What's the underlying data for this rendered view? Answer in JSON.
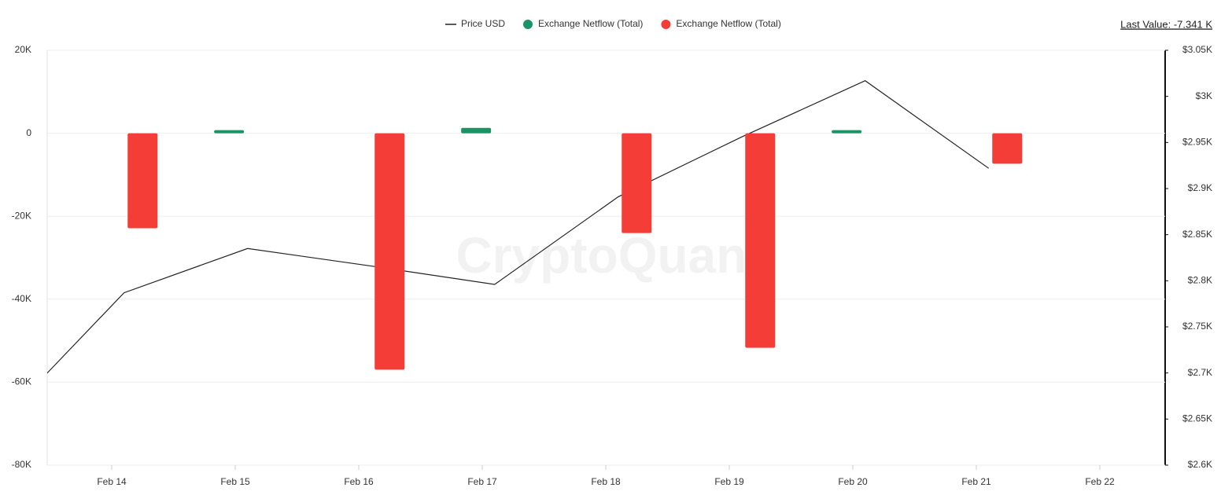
{
  "chart_data": {
    "type": "combo",
    "watermark": "CryptoQuant",
    "last_value": "Last Value: -7.341 K",
    "categories": [
      null,
      "Feb 14",
      "Feb 15",
      "Feb 16",
      "Feb 17",
      "Feb 18",
      "Feb 19",
      "Feb 20",
      "Feb 21",
      "Feb 22"
    ],
    "series": [
      {
        "name": "Price USD",
        "type": "line",
        "axis": "y2",
        "color": "#222222",
        "values": [
          2647,
          2787,
          2835,
          2816,
          2796,
          2891,
          2956,
          3017,
          2922,
          null
        ]
      },
      {
        "name": "Exchange Netflow (Total)",
        "type": "bar",
        "color": "#1a9464",
        "values": [
          null,
          null,
          760,
          null,
          1300,
          null,
          null,
          760,
          null,
          null
        ]
      },
      {
        "name": "Exchange Netflow (Total)",
        "type": "bar",
        "color": "#f43d36",
        "values": [
          null,
          -22900,
          null,
          -57000,
          null,
          -24050,
          -51700,
          null,
          -7341,
          null
        ]
      }
    ],
    "ylim": [
      -80000,
      20000
    ],
    "yticks": [
      {
        "value": -80000,
        "label": "-80K"
      },
      {
        "value": -60000,
        "label": "-60K"
      },
      {
        "value": -40000,
        "label": "-40K"
      },
      {
        "value": -20000,
        "label": "-20K"
      },
      0,
      {
        "value": 20000,
        "label": "20K"
      }
    ],
    "y2lim": [
      2600,
      3050
    ],
    "y2ticks": [
      {
        "value": 2600,
        "label": "$2.6K"
      },
      {
        "value": 2650,
        "label": "$2.65K"
      },
      {
        "value": 2700,
        "label": "$2.7K"
      },
      {
        "value": 2750,
        "label": "$2.75K"
      },
      {
        "value": 2800,
        "label": "$2.8K"
      },
      {
        "value": 2850,
        "label": "$2.85K"
      },
      {
        "value": 2900,
        "label": "$2.9K"
      },
      {
        "value": 2950,
        "label": "$2.95K"
      },
      {
        "value": 3000,
        "label": "$3K"
      },
      {
        "value": 3050,
        "label": "$3.05K"
      }
    ],
    "grid": true
  }
}
